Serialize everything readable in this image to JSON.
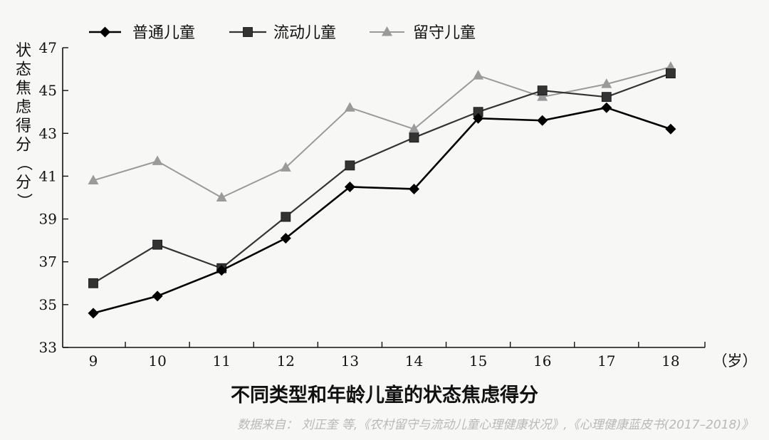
{
  "chart_data": {
    "type": "line",
    "title": "不同类型和年龄儿童的状态焦虑得分",
    "ylabel": "状态焦虑得分（分）",
    "xlabel": "（岁）",
    "categories": [
      "9",
      "10",
      "11",
      "12",
      "13",
      "14",
      "15",
      "16",
      "17",
      "18"
    ],
    "ylim": [
      33,
      47
    ],
    "yticks": [
      "33",
      "35",
      "37",
      "39",
      "41",
      "43",
      "45",
      "47"
    ],
    "grid": false,
    "legend_position": "top-left",
    "series": [
      {
        "name": "普通儿童",
        "marker": "diamond",
        "color": "#000000",
        "values": [
          34.6,
          35.4,
          36.6,
          38.1,
          40.5,
          40.4,
          43.7,
          43.6,
          44.2,
          43.2
        ]
      },
      {
        "name": "流动儿童",
        "marker": "square",
        "color": "#333333",
        "values": [
          36.0,
          37.8,
          36.7,
          39.1,
          41.5,
          42.8,
          44.0,
          45.0,
          44.7,
          45.8
        ]
      },
      {
        "name": "留守儿童",
        "marker": "triangle",
        "color": "#9a9a9a",
        "values": [
          40.8,
          41.7,
          40.0,
          41.4,
          44.2,
          43.2,
          45.7,
          44.7,
          45.3,
          46.1
        ]
      }
    ]
  },
  "source_note": "数据来自：  刘正奎  等,《农村留守与流动儿童心理健康状况》,《心理健康蓝皮书(2017–2018)》"
}
